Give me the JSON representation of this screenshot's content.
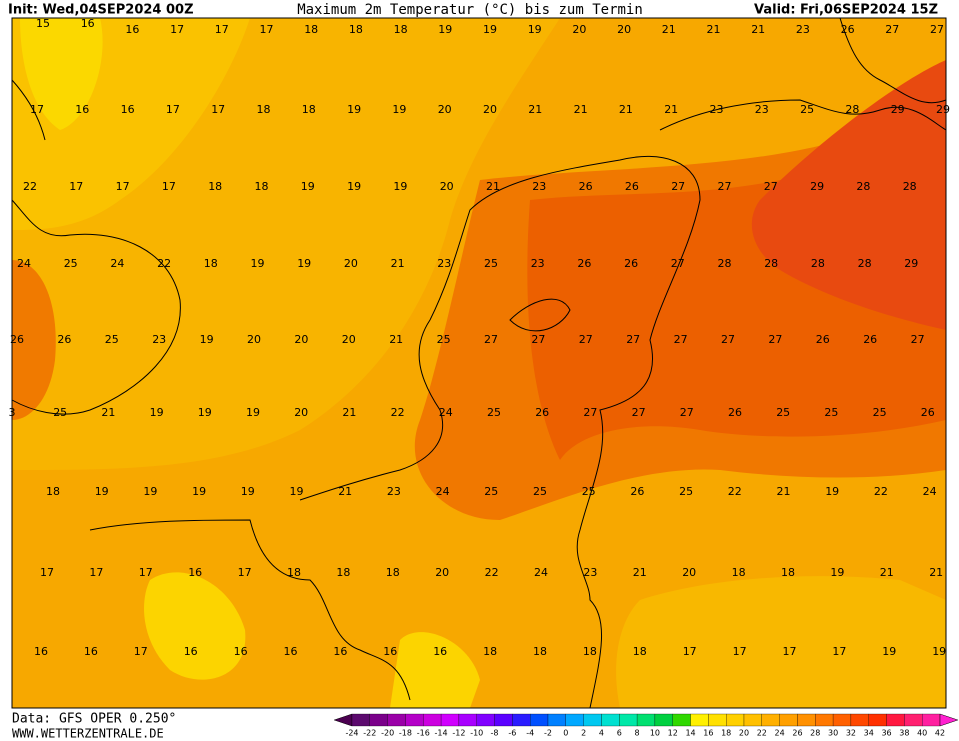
{
  "header": {
    "init": "Init: Wed,04SEP2024 00Z",
    "title": "Maximum 2m Temperatur (°C) bis zum Termin",
    "valid": "Valid: Fri,06SEP2024 15Z"
  },
  "map": {
    "rows": [
      [
        15,
        16,
        16,
        17,
        17,
        17,
        18,
        18,
        18,
        19,
        19,
        19,
        20,
        20,
        21,
        21,
        21,
        23,
        26,
        27,
        27
      ],
      [
        17,
        16,
        16,
        17,
        17,
        18,
        18,
        19,
        19,
        20,
        20,
        21,
        21,
        21,
        21,
        23,
        23,
        25,
        28,
        29,
        29
      ],
      [
        22,
        17,
        17,
        17,
        18,
        18,
        19,
        19,
        19,
        20,
        21,
        23,
        26,
        26,
        27,
        27,
        27,
        29,
        28,
        28
      ],
      [
        24,
        25,
        24,
        22,
        18,
        19,
        19,
        20,
        21,
        23,
        25,
        23,
        26,
        26,
        27,
        28,
        28,
        28,
        28,
        29
      ],
      [
        26,
        26,
        25,
        23,
        19,
        20,
        20,
        20,
        21,
        25,
        27,
        27,
        27,
        27,
        27,
        27,
        27,
        26,
        26,
        27
      ],
      [
        3,
        25,
        21,
        19,
        19,
        19,
        20,
        21,
        22,
        24,
        25,
        26,
        27,
        27,
        27,
        26,
        25,
        25,
        25,
        26
      ],
      [
        18,
        19,
        19,
        19,
        19,
        19,
        21,
        23,
        24,
        25,
        25,
        25,
        26,
        25,
        22,
        21,
        19,
        22,
        24
      ],
      [
        17,
        17,
        17,
        16,
        17,
        18,
        18,
        18,
        20,
        22,
        24,
        23,
        21,
        20,
        18,
        18,
        19,
        21,
        21
      ],
      [
        16,
        16,
        17,
        16,
        16,
        16,
        16,
        16,
        16,
        18,
        18,
        18,
        18,
        17,
        17,
        17,
        17,
        19,
        19
      ]
    ]
  },
  "legend": {
    "ticks": [
      -24,
      -22,
      -20,
      -18,
      -16,
      -14,
      -12,
      -10,
      -8,
      -6,
      -4,
      -2,
      0,
      2,
      4,
      6,
      8,
      10,
      12,
      14,
      16,
      18,
      20,
      22,
      24,
      26,
      28,
      30,
      32,
      34,
      36,
      38,
      40,
      42
    ],
    "colors": [
      "#4b0050",
      "#5c0a6e",
      "#7a008a",
      "#9a00a8",
      "#b400c8",
      "#cc00e0",
      "#d000ff",
      "#a800ff",
      "#8000ff",
      "#5a00ff",
      "#2a1cff",
      "#0050ff",
      "#0080ff",
      "#00a8ff",
      "#00c8f0",
      "#00e0d0",
      "#00e8a8",
      "#00e070",
      "#00d040",
      "#30d800",
      "#fff000",
      "#ffe000",
      "#ffd000",
      "#ffc000",
      "#ffb000",
      "#ffa000",
      "#ff9000",
      "#ff7800",
      "#ff6000",
      "#ff4800",
      "#ff3000",
      "#ff1840",
      "#ff2070",
      "#ff20a0",
      "#ff20d0"
    ]
  },
  "footer": {
    "data": "Data: GFS OPER 0.250°",
    "site": "WWW.WETTERZENTRALE.DE"
  }
}
